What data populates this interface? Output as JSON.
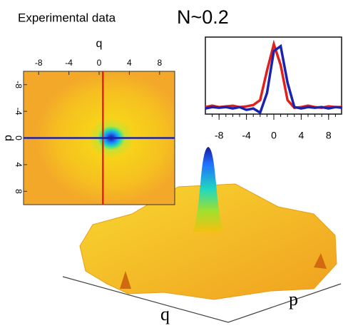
{
  "title": "Experimental data",
  "label": "N~0.2",
  "surface": {
    "xlabel": "q",
    "ylabel": "p"
  },
  "chart_data": [
    {
      "type": "heatmap",
      "xlabel": "q",
      "ylabel": "p",
      "xlim": [
        -10,
        10
      ],
      "ylim": [
        -10,
        10
      ],
      "xticks": [
        -8,
        -4,
        0,
        4,
        8
      ],
      "yticks": [
        -8,
        -4,
        0,
        4,
        8
      ]
    },
    {
      "type": "line",
      "xlim": [
        -10,
        10
      ],
      "ylim": [
        0,
        1.1
      ],
      "xticks": [
        -8,
        -4,
        0,
        4,
        8
      ],
      "x": [
        -10,
        -9,
        -8,
        -7,
        -6,
        -5,
        -4,
        -3,
        -2,
        -1,
        0,
        1,
        2,
        3,
        4,
        5,
        6,
        7,
        8,
        9,
        10
      ],
      "series": [
        {
          "name": "red",
          "color": "#e0201c",
          "values": [
            0.1,
            0.12,
            0.1,
            0.11,
            0.12,
            0.1,
            0.11,
            0.13,
            0.2,
            0.62,
            1.0,
            0.7,
            0.2,
            0.09,
            0.1,
            0.12,
            0.1,
            0.09,
            0.11,
            0.1,
            0.1
          ]
        },
        {
          "name": "blue",
          "color": "#1a22b0",
          "values": [
            0.08,
            0.1,
            0.09,
            0.1,
            0.08,
            0.1,
            0.06,
            0.08,
            0.02,
            0.3,
            0.9,
            0.97,
            0.45,
            0.1,
            0.08,
            0.1,
            0.09,
            0.1,
            0.08,
            0.1,
            0.09
          ]
        }
      ]
    }
  ]
}
